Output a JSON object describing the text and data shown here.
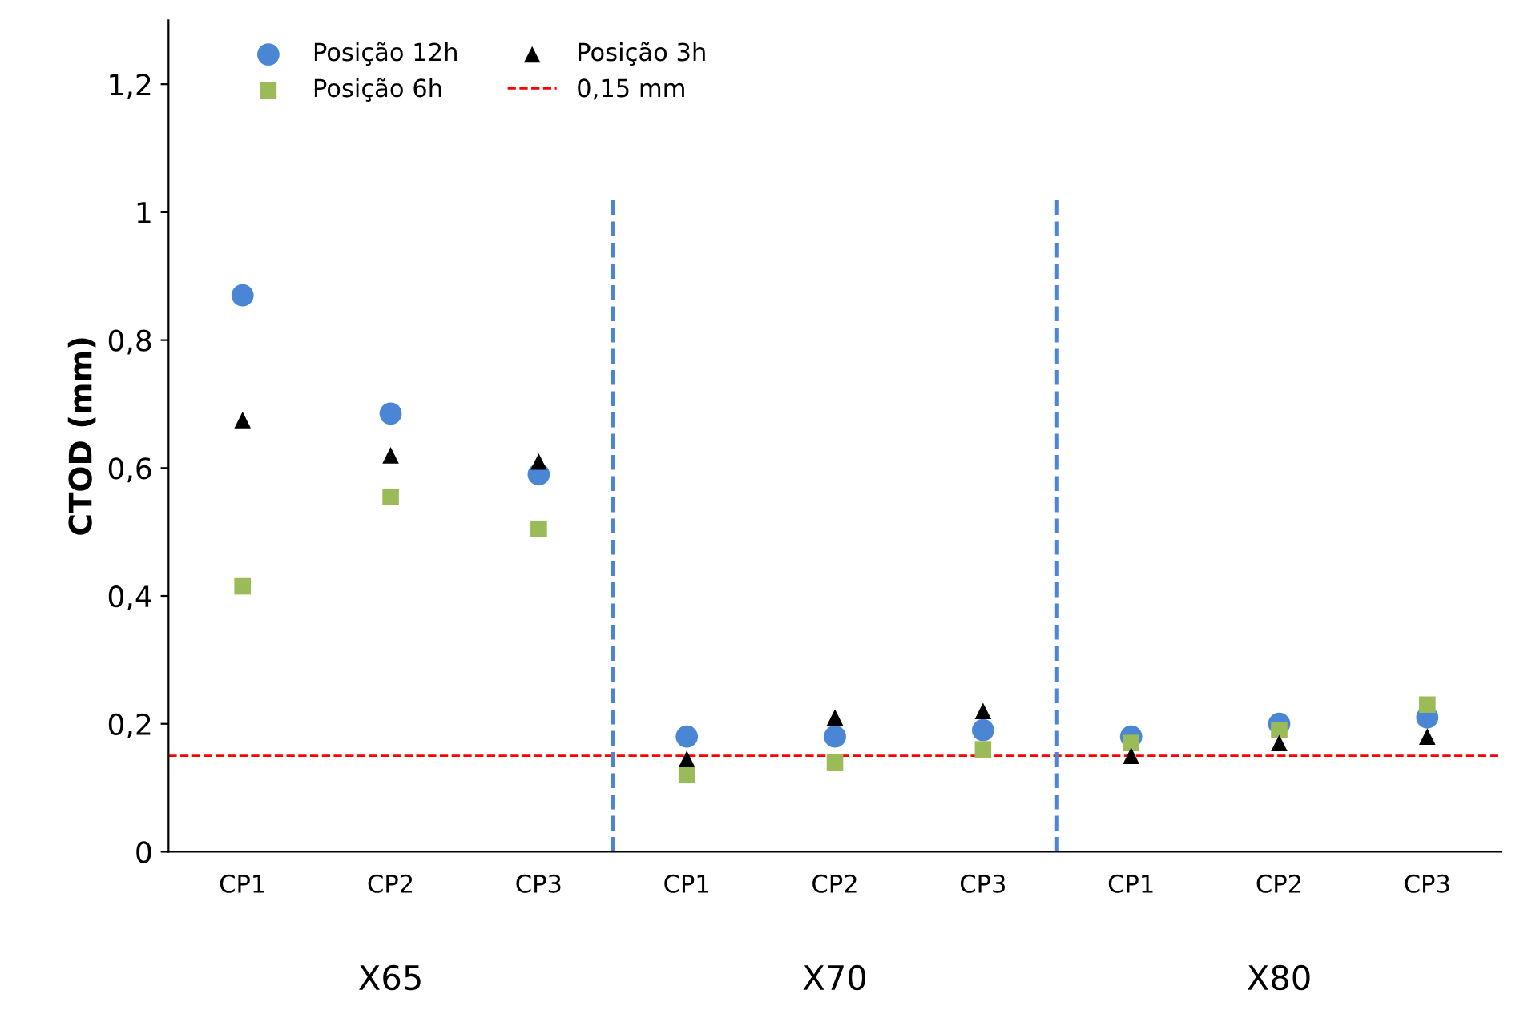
{
  "chart_data": {
    "type": "scatter",
    "ylabel": "CTOD (mm)",
    "categories": [
      "CP1",
      "CP2",
      "CP3",
      "CP1",
      "CP2",
      "CP3",
      "CP1",
      "CP2",
      "CP3"
    ],
    "ylim": [
      0,
      1.3
    ],
    "yticks": [
      0,
      {
        "value": 0.2,
        "label": "0,2"
      },
      {
        "value": 0.4,
        "label": "0,4"
      },
      {
        "value": 0.6,
        "label": "0,6"
      },
      {
        "value": 0.8,
        "label": "0,8"
      },
      1,
      {
        "value": 1.2,
        "label": "1,2"
      }
    ],
    "series": [
      {
        "name": "Posição 12h",
        "color": "#4a86d4",
        "marker": "circle",
        "values": [
          0.87,
          0.685,
          0.59,
          0.18,
          0.18,
          0.19,
          0.18,
          0.2,
          0.21
        ]
      },
      {
        "name": "Posição 6h",
        "color": "#9bbb59",
        "marker": "square",
        "values": [
          0.415,
          0.555,
          0.505,
          0.12,
          0.14,
          0.16,
          0.17,
          0.19,
          0.23
        ]
      },
      {
        "name": "Posição 3h",
        "color": "#000000",
        "marker": "triangle",
        "values": [
          0.675,
          0.62,
          0.61,
          0.145,
          0.21,
          0.22,
          0.15,
          0.17,
          0.18
        ]
      }
    ],
    "ref_lines": [
      {
        "axis": "y",
        "value": 0.15,
        "label": "0,15 mm",
        "color": "#ff0000",
        "line_style": "dashed"
      }
    ],
    "annotations": [
      "X65",
      "X70",
      "X80"
    ],
    "legend": "top left",
    "grid": false
  }
}
